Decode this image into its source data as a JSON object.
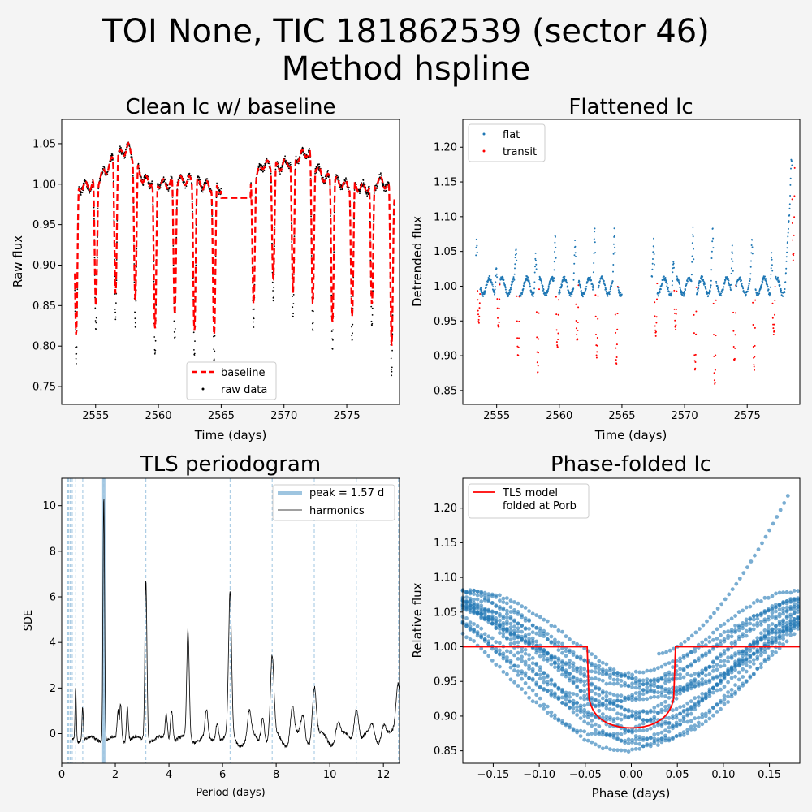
{
  "figure": {
    "title_line1": "TOI None, TIC 181862539 (sector 46)",
    "title_line2": "Method hspline",
    "background": "#f4f4f4"
  },
  "colors": {
    "series_blue": "#1f77b4",
    "red": "#ff0000",
    "light_blue": "#9ec5e0",
    "black": "#000000"
  },
  "chart_data": [
    {
      "id": "clean",
      "type": "scatter",
      "title": "Clean lc w/ baseline",
      "xlabel": "Time (days)",
      "ylabel": "Raw flux",
      "xlim": [
        2552.3,
        2579.2
      ],
      "ylim": [
        0.728,
        1.08
      ],
      "xticks": [
        2555,
        2560,
        2565,
        2570,
        2575
      ],
      "yticks": [
        0.75,
        0.8,
        0.85,
        0.9,
        0.95,
        1.0,
        1.05
      ],
      "tick_labels_x": [
        "2555",
        "2560",
        "2565",
        "2570",
        "2575"
      ],
      "tick_labels_y": [
        "0.75",
        "0.80",
        "0.85",
        "0.90",
        "0.95",
        "1.00",
        "1.05"
      ],
      "legend_position": "lower center",
      "time_start": 2553.35,
      "gap": [
        2565.0,
        2567.35
      ],
      "time_end": 2578.8,
      "period": 1.57,
      "first_dip": 2553.45,
      "dip_depths": [
        0.22,
        0.18,
        0.19,
        0.2,
        0.22,
        0.19,
        0.21,
        0.22,
        0.2,
        0.17,
        0.16,
        0.2,
        0.21,
        0.2,
        0.19,
        0.18,
        0.22,
        0.21,
        0.19,
        0.15
      ],
      "drift": [
        [
          2553.4,
          0.995
        ],
        [
          2555.0,
          1.0
        ],
        [
          2556.4,
          1.03
        ],
        [
          2557.6,
          1.045
        ],
        [
          2558.8,
          1.005
        ],
        [
          2560.5,
          1.0
        ],
        [
          2562.2,
          1.005
        ],
        [
          2563.8,
          0.998
        ],
        [
          2565.0,
          0.995
        ],
        [
          2567.4,
          0.995
        ],
        [
          2568.3,
          1.025
        ],
        [
          2569.4,
          1.02
        ],
        [
          2570.7,
          1.03
        ],
        [
          2571.9,
          1.04
        ],
        [
          2573.0,
          1.01
        ],
        [
          2575.0,
          0.998
        ],
        [
          2576.6,
          0.995
        ],
        [
          2577.8,
          1.005
        ],
        [
          2578.8,
          0.985
        ]
      ],
      "series": [
        {
          "name": "baseline",
          "style": "dashed red line"
        },
        {
          "name": "raw data",
          "style": "black points"
        }
      ]
    },
    {
      "id": "flat",
      "type": "scatter",
      "title": "Flattened lc",
      "xlabel": "Time (days)",
      "ylabel": "Detrended flux",
      "xlim": [
        2552.3,
        2579.2
      ],
      "ylim": [
        0.83,
        1.24
      ],
      "xticks": [
        2555,
        2560,
        2565,
        2570,
        2575
      ],
      "yticks": [
        0.85,
        0.9,
        0.95,
        1.0,
        1.05,
        1.1,
        1.15,
        1.2
      ],
      "tick_labels_x": [
        "2555",
        "2560",
        "2565",
        "2570",
        "2575"
      ],
      "tick_labels_y": [
        "0.85",
        "0.90",
        "0.95",
        "1.00",
        "1.05",
        "1.10",
        "1.15",
        "1.20"
      ],
      "legend_position": "upper left",
      "dip_depths": [
        0.05,
        0.06,
        0.1,
        0.12,
        0.09,
        0.08,
        0.1,
        0.11,
        0.14,
        0.07,
        0.06,
        0.12,
        0.14,
        0.11,
        0.12,
        0.07,
        0.13,
        0.14,
        0.09,
        0.08
      ],
      "spike_heights": [
        0.06,
        0.04,
        0.05,
        0.05,
        0.08,
        0.06,
        0.1,
        0.07,
        0.09,
        0.06,
        0.04,
        0.09,
        0.08,
        0.07,
        0.06,
        0.06,
        0.05,
        0.06,
        0.07,
        0.05
      ],
      "end_ramp_peak": 1.22,
      "series": [
        {
          "name": "flat",
          "color": "#1f77b4"
        },
        {
          "name": "transit",
          "color": "#ff0000"
        }
      ]
    },
    {
      "id": "tls",
      "type": "line",
      "title": "TLS periodogram",
      "xlabel": "Period (days)",
      "ylabel": "SDE",
      "xlim": [
        0,
        12.6
      ],
      "ylim": [
        -1.3,
        11.2
      ],
      "xticks": [
        0,
        2,
        4,
        6,
        8,
        10,
        12
      ],
      "yticks": [
        0,
        2,
        4,
        6,
        8,
        10
      ],
      "tick_labels_x": [
        "0",
        "2",
        "4",
        "6",
        "8",
        "10",
        "12"
      ],
      "tick_labels_y": [
        "0",
        "2",
        "4",
        "6",
        "8",
        "10"
      ],
      "legend_position": "upper right",
      "peak_period": 1.57,
      "peaks": [
        [
          1.57,
          10.6
        ],
        [
          3.14,
          6.9
        ],
        [
          4.71,
          4.6
        ],
        [
          6.28,
          5.95
        ],
        [
          7.85,
          3.3
        ],
        [
          9.42,
          2.2
        ],
        [
          10.99,
          1.4
        ],
        [
          12.56,
          2.4
        ],
        [
          0.52,
          2.2
        ],
        [
          0.78,
          1.3
        ],
        [
          2.2,
          1.4
        ],
        [
          2.45,
          1.3
        ],
        [
          2.1,
          1.0
        ],
        [
          3.9,
          0.9
        ],
        [
          4.1,
          1.2
        ],
        [
          5.4,
          1.0
        ],
        [
          5.8,
          0.6
        ],
        [
          7.0,
          0.9
        ],
        [
          7.5,
          1.0
        ],
        [
          8.6,
          1.3
        ],
        [
          9.0,
          0.8
        ],
        [
          10.3,
          0.6
        ],
        [
          11.6,
          0.4
        ],
        [
          12.0,
          0.5
        ]
      ],
      "harmonic_lines": [
        0.196,
        0.224,
        0.262,
        0.314,
        0.392,
        0.523,
        0.785,
        1.57,
        3.14,
        4.71,
        6.28,
        7.85,
        9.42,
        10.99,
        12.56
      ],
      "series": [
        {
          "name": "peak = 1.57 d",
          "style": "thick light-blue line"
        },
        {
          "name": "harmonics",
          "style": "thin black line"
        }
      ]
    },
    {
      "id": "phase",
      "type": "scatter",
      "title": "Phase-folded lc",
      "xlabel": "Phase (days)",
      "ylabel": "Relative flux",
      "xlim": [
        -0.183,
        0.183
      ],
      "ylim": [
        0.832,
        1.243
      ],
      "xticks": [
        -0.15,
        -0.1,
        -0.05,
        0.0,
        0.05,
        0.1,
        0.15
      ],
      "yticks": [
        0.85,
        0.9,
        0.95,
        1.0,
        1.05,
        1.1,
        1.15,
        1.2
      ],
      "tick_labels_x": [
        "−0.15",
        "−0.10",
        "−0.05",
        "0.00",
        "0.05",
        "0.10",
        "0.15"
      ],
      "tick_labels_y": [
        "0.85",
        "0.90",
        "0.95",
        "1.00",
        "1.05",
        "1.10",
        "1.15",
        "1.20"
      ],
      "legend_position": "upper left",
      "model_half_width": 0.048,
      "model_depth": 0.117,
      "curve_min_flux": [
        0.85,
        0.858,
        0.866,
        0.872,
        0.88,
        0.888,
        0.896,
        0.905,
        0.915,
        0.925,
        0.935,
        0.945,
        0.952,
        0.96,
        0.865,
        0.895,
        0.92,
        0.94
      ],
      "curve_center": [
        -0.01,
        0.015,
        0.03,
        -0.03,
        0.005,
        0.04,
        -0.02,
        0.02,
        -0.04,
        0.01,
        0.035,
        -0.005,
        0.025,
        -0.015,
        0.0,
        0.02,
        -0.025,
        0.045
      ],
      "series": [
        {
          "name": "TLS model\nfolded at Porb",
          "color": "#ff0000"
        }
      ]
    }
  ]
}
